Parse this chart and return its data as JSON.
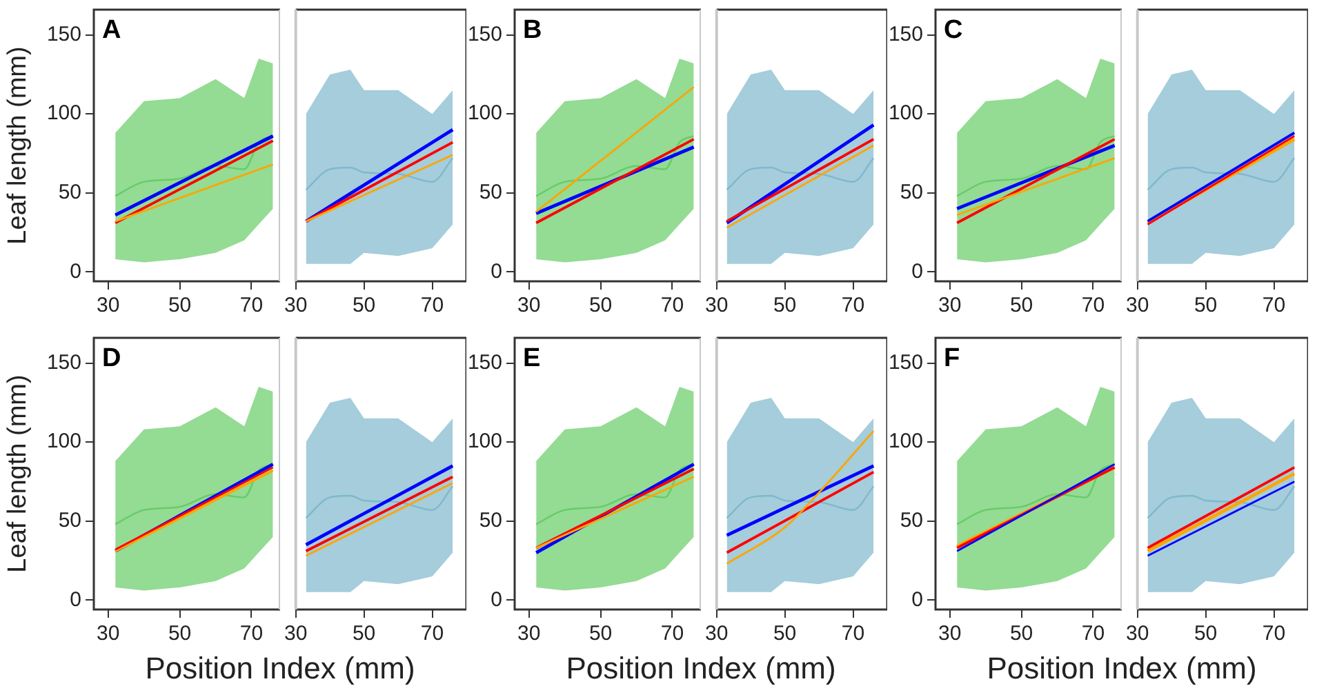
{
  "chart_data": [
    {
      "type": "line",
      "title": "A",
      "ylabel": "Leaf length (mm)",
      "xlim": [
        26,
        78
      ],
      "xticks": [
        30,
        50,
        70
      ],
      "ylim": [
        -6,
        166
      ],
      "yticks": [
        0,
        50,
        100,
        150
      ],
      "marker": "none",
      "series": [
        {
          "color": "#66cc66",
          "x": [
            32,
            40,
            50,
            60,
            68,
            72,
            76
          ],
          "values": [
            48,
            57,
            59,
            67,
            65,
            82,
            86
          ],
          "lower": [
            8,
            6,
            8,
            12,
            20,
            30,
            40
          ],
          "upper": [
            88,
            108,
            110,
            122,
            110,
            135,
            132
          ]
        },
        {
          "color": "#0000ff",
          "x": [
            32,
            76
          ],
          "values": [
            36,
            86
          ]
        },
        {
          "color": "#ff0000",
          "x": [
            32,
            76
          ],
          "values": [
            31,
            83
          ]
        },
        {
          "color": "#ffa500",
          "x": [
            32,
            76
          ],
          "values": [
            32,
            68
          ]
        }
      ]
    },
    {
      "type": "line",
      "tick_labels": "x",
      "xlim": [
        30,
        80
      ],
      "xticks": [
        30,
        50,
        70
      ],
      "ylim": [
        -6,
        166
      ],
      "yticks": [
        0,
        50,
        100,
        150
      ],
      "marker": "none",
      "series": [
        {
          "color": "#7fb8cc",
          "x": [
            33,
            40,
            46,
            50,
            60,
            70,
            76
          ],
          "values": [
            52,
            65,
            66,
            63,
            62,
            57,
            72
          ],
          "lower": [
            5,
            5,
            5,
            12,
            10,
            15,
            30
          ],
          "upper": [
            100,
            125,
            128,
            115,
            115,
            100,
            115
          ]
        },
        {
          "color": "#0000ff",
          "x": [
            33,
            76
          ],
          "values": [
            32,
            90
          ]
        },
        {
          "color": "#ff0000",
          "x": [
            33,
            76
          ],
          "values": [
            32,
            82
          ]
        },
        {
          "color": "#ffa500",
          "x": [
            33,
            76
          ],
          "values": [
            32,
            74
          ]
        }
      ]
    },
    {
      "type": "line",
      "title": "B",
      "xlim": [
        26,
        78
      ],
      "xticks": [
        30,
        50,
        70
      ],
      "ylim": [
        -6,
        166
      ],
      "yticks": [
        0,
        50,
        100,
        150
      ],
      "marker": "none",
      "series": [
        {
          "color": "#66cc66",
          "x": [
            32,
            40,
            50,
            60,
            68,
            72,
            76
          ],
          "values": [
            48,
            57,
            59,
            67,
            65,
            82,
            86
          ],
          "lower": [
            8,
            6,
            8,
            12,
            20,
            30,
            40
          ],
          "upper": [
            88,
            108,
            110,
            122,
            110,
            135,
            132
          ]
        },
        {
          "color": "#0000ff",
          "x": [
            32,
            76
          ],
          "values": [
            37,
            79
          ]
        },
        {
          "color": "#ff0000",
          "x": [
            32,
            76
          ],
          "values": [
            31,
            84
          ]
        },
        {
          "color": "#ffa500",
          "x": [
            32,
            76
          ],
          "values": [
            38,
            117
          ]
        }
      ]
    },
    {
      "type": "line",
      "tick_labels": "x",
      "xlim": [
        30,
        80
      ],
      "xticks": [
        30,
        50,
        70
      ],
      "ylim": [
        -6,
        166
      ],
      "yticks": [
        0,
        50,
        100,
        150
      ],
      "marker": "none",
      "series": [
        {
          "color": "#7fb8cc",
          "x": [
            33,
            40,
            46,
            50,
            60,
            70,
            76
          ],
          "values": [
            52,
            65,
            66,
            63,
            62,
            57,
            72
          ],
          "lower": [
            5,
            5,
            5,
            12,
            10,
            15,
            30
          ],
          "upper": [
            100,
            125,
            128,
            115,
            115,
            100,
            115
          ]
        },
        {
          "color": "#0000ff",
          "x": [
            33,
            76
          ],
          "values": [
            31,
            93
          ]
        },
        {
          "color": "#ff0000",
          "x": [
            33,
            76
          ],
          "values": [
            32,
            84
          ]
        },
        {
          "color": "#ffa500",
          "x": [
            33,
            76
          ],
          "values": [
            28,
            80
          ]
        }
      ]
    },
    {
      "type": "line",
      "title": "C",
      "xlim": [
        26,
        78
      ],
      "xticks": [
        30,
        50,
        70
      ],
      "ylim": [
        -6,
        166
      ],
      "yticks": [
        0,
        50,
        100,
        150
      ],
      "marker": "none",
      "series": [
        {
          "color": "#66cc66",
          "x": [
            32,
            40,
            50,
            60,
            68,
            72,
            76
          ],
          "values": [
            48,
            57,
            59,
            67,
            65,
            82,
            86
          ],
          "lower": [
            8,
            6,
            8,
            12,
            20,
            30,
            40
          ],
          "upper": [
            88,
            108,
            110,
            122,
            110,
            135,
            132
          ]
        },
        {
          "color": "#0000ff",
          "x": [
            32,
            76
          ],
          "values": [
            40,
            80
          ]
        },
        {
          "color": "#ff0000",
          "x": [
            32,
            76
          ],
          "values": [
            31,
            84
          ]
        },
        {
          "color": "#ffa500",
          "x": [
            32,
            76
          ],
          "values": [
            36,
            72
          ]
        }
      ]
    },
    {
      "type": "line",
      "tick_labels": "x",
      "xlim": [
        30,
        80
      ],
      "xticks": [
        30,
        50,
        70
      ],
      "ylim": [
        -6,
        166
      ],
      "yticks": [
        0,
        50,
        100,
        150
      ],
      "marker": "none",
      "series": [
        {
          "color": "#7fb8cc",
          "x": [
            33,
            40,
            46,
            50,
            60,
            70,
            76
          ],
          "values": [
            52,
            65,
            66,
            63,
            62,
            57,
            72
          ],
          "lower": [
            5,
            5,
            5,
            12,
            10,
            15,
            30
          ],
          "upper": [
            100,
            125,
            128,
            115,
            115,
            100,
            115
          ]
        },
        {
          "color": "#ffa500",
          "x": [
            33,
            76
          ],
          "values": [
            31,
            84
          ]
        },
        {
          "color": "#0000ff",
          "x": [
            33,
            76
          ],
          "values": [
            32,
            88
          ]
        },
        {
          "color": "#ff0000",
          "x": [
            33,
            76
          ],
          "values": [
            30,
            86
          ]
        }
      ]
    },
    {
      "type": "line",
      "title": "D",
      "ylabel": "Leaf length (mm)",
      "xlabel": "Position Index (mm)",
      "xlim": [
        26,
        78
      ],
      "xticks": [
        30,
        50,
        70
      ],
      "ylim": [
        -6,
        166
      ],
      "yticks": [
        0,
        50,
        100,
        150
      ],
      "marker": "none",
      "series": [
        {
          "color": "#66cc66",
          "x": [
            32,
            40,
            50,
            60,
            68,
            72,
            76
          ],
          "values": [
            48,
            57,
            59,
            67,
            65,
            82,
            86
          ],
          "lower": [
            8,
            6,
            8,
            12,
            20,
            30,
            40
          ],
          "upper": [
            88,
            108,
            110,
            122,
            110,
            135,
            132
          ]
        },
        {
          "color": "#0000ff",
          "x": [
            32,
            76
          ],
          "values": [
            31,
            86
          ]
        },
        {
          "color": "#ffa500",
          "x": [
            32,
            76
          ],
          "values": [
            31,
            82
          ]
        },
        {
          "color": "#ff0000",
          "x": [
            32,
            76
          ],
          "values": [
            32,
            84
          ]
        }
      ]
    },
    {
      "type": "line",
      "tick_labels": "x",
      "xlim": [
        30,
        80
      ],
      "xticks": [
        30,
        50,
        70
      ],
      "ylim": [
        -6,
        166
      ],
      "yticks": [
        0,
        50,
        100,
        150
      ],
      "marker": "none",
      "series": [
        {
          "color": "#7fb8cc",
          "x": [
            33,
            40,
            46,
            50,
            60,
            70,
            76
          ],
          "values": [
            52,
            65,
            66,
            63,
            62,
            57,
            72
          ],
          "lower": [
            5,
            5,
            5,
            12,
            10,
            15,
            30
          ],
          "upper": [
            100,
            125,
            128,
            115,
            115,
            100,
            115
          ]
        },
        {
          "color": "#0000ff",
          "x": [
            33,
            76
          ],
          "values": [
            35,
            85
          ]
        },
        {
          "color": "#ff0000",
          "x": [
            33,
            76
          ],
          "values": [
            31,
            78
          ]
        },
        {
          "color": "#ffa500",
          "x": [
            33,
            76
          ],
          "values": [
            28,
            74
          ]
        }
      ]
    },
    {
      "type": "line",
      "title": "E",
      "xlabel": "Position Index (mm)",
      "xlim": [
        26,
        78
      ],
      "xticks": [
        30,
        50,
        70
      ],
      "ylim": [
        -6,
        166
      ],
      "yticks": [
        0,
        50,
        100,
        150
      ],
      "marker": "none",
      "series": [
        {
          "color": "#66cc66",
          "x": [
            32,
            40,
            50,
            60,
            68,
            72,
            76
          ],
          "values": [
            48,
            57,
            59,
            67,
            65,
            82,
            86
          ],
          "lower": [
            8,
            6,
            8,
            12,
            20,
            30,
            40
          ],
          "upper": [
            88,
            108,
            110,
            122,
            110,
            135,
            132
          ]
        },
        {
          "color": "#0000ff",
          "x": [
            32,
            76
          ],
          "values": [
            30,
            86
          ]
        },
        {
          "color": "#ff0000",
          "x": [
            32,
            76
          ],
          "values": [
            33,
            83
          ]
        },
        {
          "color": "#ffa500",
          "x": [
            32,
            76
          ],
          "values": [
            33,
            78
          ]
        }
      ]
    },
    {
      "type": "line",
      "tick_labels": "x",
      "xlim": [
        30,
        80
      ],
      "xticks": [
        30,
        50,
        70
      ],
      "ylim": [
        -6,
        166
      ],
      "yticks": [
        0,
        50,
        100,
        150
      ],
      "marker": "none",
      "series": [
        {
          "color": "#7fb8cc",
          "x": [
            33,
            40,
            46,
            50,
            60,
            70,
            76
          ],
          "values": [
            52,
            65,
            66,
            63,
            62,
            57,
            72
          ],
          "lower": [
            5,
            5,
            5,
            12,
            10,
            15,
            30
          ],
          "upper": [
            100,
            125,
            128,
            115,
            115,
            100,
            115
          ]
        },
        {
          "color": "#0000ff",
          "x": [
            33,
            76
          ],
          "values": [
            41,
            85
          ]
        },
        {
          "color": "#ff0000",
          "x": [
            33,
            76
          ],
          "values": [
            30,
            81
          ]
        },
        {
          "color": "#ffa500",
          "x": [
            33,
            50,
            60,
            76
          ],
          "values": [
            23,
            46,
            68,
            107
          ]
        }
      ]
    },
    {
      "type": "line",
      "title": "F",
      "xlabel": "Position Index (mm)",
      "xlim": [
        26,
        78
      ],
      "xticks": [
        30,
        50,
        70
      ],
      "ylim": [
        -6,
        166
      ],
      "yticks": [
        0,
        50,
        100,
        150
      ],
      "marker": "none",
      "series": [
        {
          "color": "#66cc66",
          "x": [
            32,
            40,
            50,
            60,
            68,
            72,
            76
          ],
          "values": [
            48,
            57,
            59,
            67,
            65,
            82,
            86
          ],
          "lower": [
            8,
            6,
            8,
            12,
            20,
            30,
            40
          ],
          "upper": [
            88,
            108,
            110,
            122,
            110,
            135,
            132
          ]
        },
        {
          "color": "#ffa500",
          "x": [
            32,
            76
          ],
          "values": [
            34,
            84
          ]
        },
        {
          "color": "#ff0000",
          "x": [
            32,
            76
          ],
          "values": [
            33,
            84
          ]
        },
        {
          "color": "#0000ff",
          "x": [
            32,
            76
          ],
          "values": [
            31,
            86
          ]
        }
      ]
    },
    {
      "type": "line",
      "tick_labels": "x",
      "xlim": [
        30,
        80
      ],
      "xticks": [
        30,
        50,
        70
      ],
      "ylim": [
        -6,
        166
      ],
      "yticks": [
        0,
        50,
        100,
        150
      ],
      "marker": "none",
      "series": [
        {
          "color": "#7fb8cc",
          "x": [
            33,
            40,
            46,
            50,
            60,
            70,
            76
          ],
          "values": [
            52,
            65,
            66,
            63,
            62,
            57,
            72
          ],
          "lower": [
            5,
            5,
            5,
            12,
            10,
            15,
            30
          ],
          "upper": [
            100,
            125,
            128,
            115,
            115,
            100,
            115
          ]
        },
        {
          "color": "#ffa500",
          "x": [
            33,
            76
          ],
          "values": [
            31,
            80
          ]
        },
        {
          "color": "#ff0000",
          "x": [
            33,
            76
          ],
          "values": [
            33,
            84
          ]
        },
        {
          "color": "#0000ff",
          "x": [
            33,
            76
          ],
          "values": [
            28,
            75
          ]
        }
      ]
    }
  ]
}
